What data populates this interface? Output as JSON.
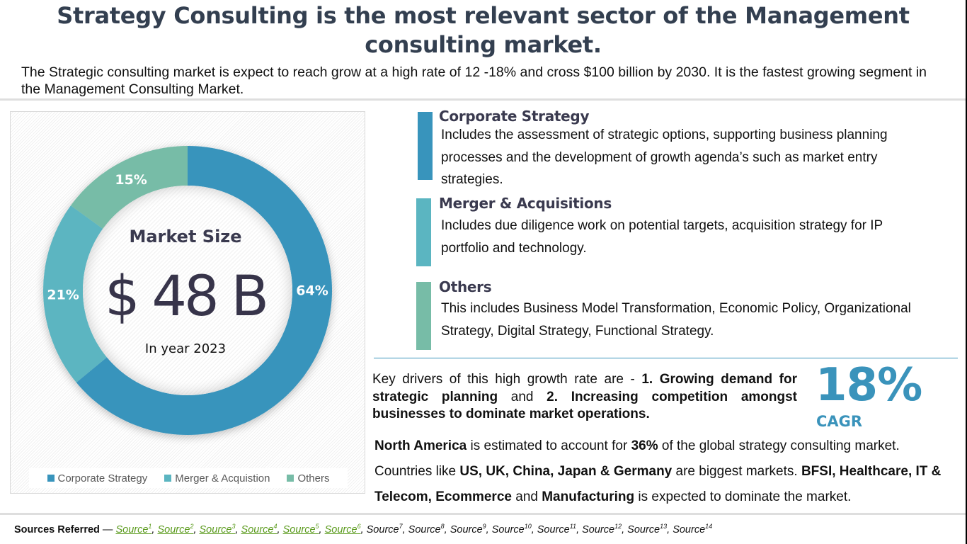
{
  "header": {
    "title": "Strategy Consulting is the most relevant sector of the Management consulting market.",
    "subtitle": "The Strategic consulting market is expect to reach grow at a high rate of 12 -18% and cross $100 billion by 2030. It is the fastest growing segment in the Management Consulting Market."
  },
  "chart_data": {
    "type": "pie",
    "variant": "donut",
    "start": "top",
    "direction": "clockwise",
    "categories": [
      "Corporate Strategy",
      "Merger & Acquistion",
      "Others"
    ],
    "values": [
      64,
      21,
      15
    ],
    "labels": [
      "64%",
      "21%",
      "15%"
    ],
    "colors": [
      "#3894bc",
      "#5bb5c1",
      "#77bca7"
    ],
    "center": {
      "title": "Market Size",
      "value": "$ 48 B",
      "caption": "In year 2023"
    },
    "legend_position": "bottom"
  },
  "categories": [
    {
      "title": "Corporate Strategy",
      "body": "Includes the assessment of strategic options, supporting business planning processes and the development of growth agenda’s such as market entry strategies.",
      "color": "#3894bc"
    },
    {
      "title": "Merger & Acquisitions",
      "body": "Includes due diligence work on potential targets, acquisition strategy for IP portfolio and technology.",
      "color": "#5bb5c1"
    },
    {
      "title": "Others",
      "body": "This includes Business Model Transformation, Economic Policy, Organizational Strategy, Digital Strategy, Functional Strategy.",
      "color": "#77bca7"
    }
  ],
  "drivers": {
    "intro": "Key drivers of this high growth rate are - ",
    "d1": "1. Growing demand for strategic planning",
    "mid": " and ",
    "d2": "2. Increasing competition amongst businesses to dominate market operations."
  },
  "cagr": {
    "value": "18%",
    "label": "CAGR",
    "color": "#3a93bb"
  },
  "facts": {
    "region": "North America",
    "t1": " is estimated to account for ",
    "share": "36%",
    "t2": " of the global strategy consulting market. Countries like ",
    "countries": "US, UK, China, Japan & Germany",
    "t3": " are biggest markets. ",
    "sectors": "BFSI, Healthcare, IT & Telecom, Ecommerce",
    "t4": " and ",
    "sector_last": "Manufacturing",
    "t5": " is expected to dominate the market."
  },
  "sources": {
    "label": "Sources Referred",
    "dash": " — ",
    "items": [
      {
        "text": "Source",
        "sup": "1",
        "linked": true
      },
      {
        "text": "Source",
        "sup": "2",
        "linked": true
      },
      {
        "text": "Source",
        "sup": "3",
        "linked": true
      },
      {
        "text": "Source",
        "sup": "4",
        "linked": true
      },
      {
        "text": "Source",
        "sup": "5",
        "linked": true
      },
      {
        "text": "Source",
        "sup": "6",
        "linked": true
      },
      {
        "text": "Source",
        "sup": "7",
        "linked": false
      },
      {
        "text": "Source",
        "sup": "8",
        "linked": false
      },
      {
        "text": "Source",
        "sup": "9",
        "linked": false
      },
      {
        "text": "Source",
        "sup": "10",
        "linked": false
      },
      {
        "text": "Source",
        "sup": "11",
        "linked": false
      },
      {
        "text": "Source",
        "sup": "12",
        "linked": false
      },
      {
        "text": "Source",
        "sup": "13",
        "linked": false
      },
      {
        "text": "Source",
        "sup": "14",
        "linked": false
      }
    ]
  }
}
